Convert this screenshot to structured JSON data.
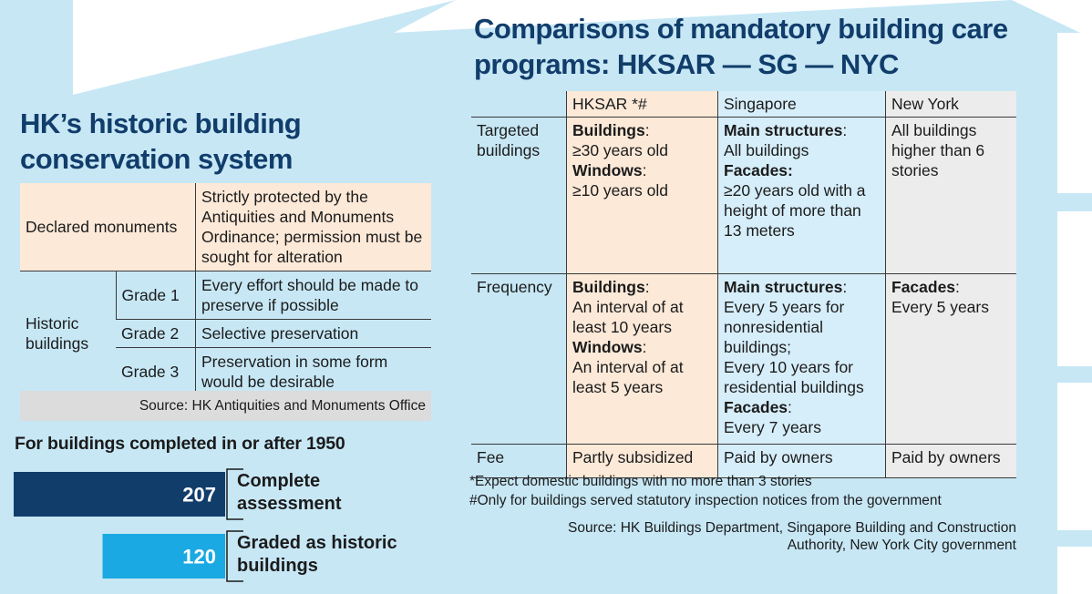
{
  "conservation": {
    "title": "HK’s historic building conservation system",
    "declared_label": "Declared monuments",
    "declared_desc": "Strictly protected by the Antiquities and Monuments Ordinance; permission must be sought for alteration",
    "historic_label": "Historic buildings",
    "grades": [
      {
        "grade": "Grade 1",
        "desc": "Every effort should be made to preserve if possible"
      },
      {
        "grade": "Grade 2",
        "desc": "Selective preservation"
      },
      {
        "grade": "Grade 3",
        "desc": "Preservation in some form would be desirable"
      }
    ],
    "source": "Source: HK Antiquities and Monuments Office"
  },
  "chart_data": {
    "type": "bar",
    "title": "For buildings completed in or after 1950",
    "categories": [
      "Complete assessment",
      "Graded as historic buildings"
    ],
    "values": [
      207,
      120
    ],
    "colors": [
      "#113d6b",
      "#1aa9e2"
    ]
  },
  "comparison": {
    "title": "Comparisons of mandatory building care programs: HKSAR — SG — NYC",
    "columns": [
      "HKSAR *#",
      "Singapore",
      "New York"
    ],
    "rows": [
      {
        "label": "Targeted buildings",
        "cells": [
          [
            {
              "b": "Buildings",
              "t": ":"
            },
            {
              "t": "≥30 years old"
            },
            {
              "b": "Windows",
              "t": ":"
            },
            {
              "t": "≥10 years old"
            }
          ],
          [
            {
              "b": "Main structures",
              "t": ":"
            },
            {
              "t": "All buildings"
            },
            {
              "b": "Facades:",
              "t": ""
            },
            {
              "t": "≥20 years old with a height of more than 13 meters"
            }
          ],
          [
            {
              "t": "All buildings higher than 6 stories"
            }
          ]
        ]
      },
      {
        "label": "Frequency",
        "cells": [
          [
            {
              "b": "Buildings",
              "t": ":"
            },
            {
              "t": "An interval of at least 10 years"
            },
            {
              "b": "Windows",
              "t": ":"
            },
            {
              "t": "An interval of at least 5 years"
            }
          ],
          [
            {
              "b": "Main structures",
              "t": ":"
            },
            {
              "t": "Every 5 years for nonresidential buildings;"
            },
            {
              "t": "Every 10 years for residential buildings"
            },
            {
              "b": "Facades",
              "t": ":"
            },
            {
              "t": "Every 7 years"
            }
          ],
          [
            {
              "b": "Facades",
              "t": ":"
            },
            {
              "t": "Every 5 years"
            }
          ]
        ]
      },
      {
        "label": "Fee",
        "cells": [
          [
            {
              "t": "Partly subsidized"
            }
          ],
          [
            {
              "t": "Paid by owners"
            }
          ],
          [
            {
              "t": "Paid by owners"
            }
          ]
        ]
      }
    ],
    "footnotes": [
      "*Expect domestic buildings with no more than 3 stories",
      "#Only for buildings served statutory inspection notices from the government"
    ],
    "source": "Source: HK Buildings Department, Singapore Building and Construction Authority, New York City government"
  }
}
